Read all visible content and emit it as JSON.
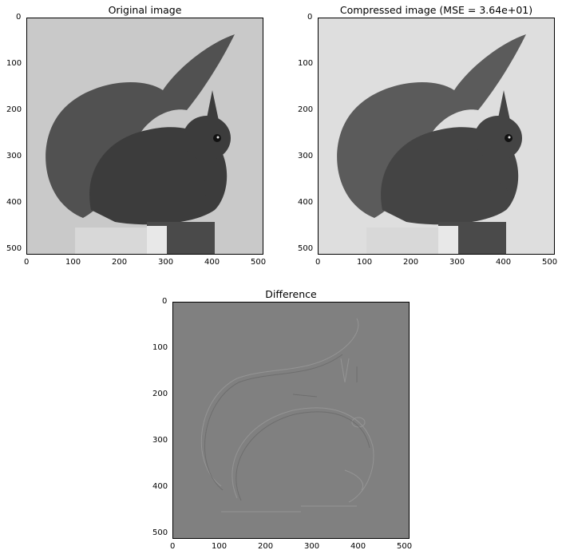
{
  "panels": [
    {
      "id": "original",
      "title": "Original image",
      "x_ticks": [
        "0",
        "100",
        "200",
        "300",
        "400",
        "500"
      ],
      "y_ticks": [
        "0",
        "100",
        "200",
        "300",
        "400",
        "500"
      ],
      "image": "squirrel-photo"
    },
    {
      "id": "compressed",
      "title": "Compressed image (MSE = 3.64e+01)",
      "x_ticks": [
        "0",
        "100",
        "200",
        "300",
        "400",
        "500"
      ],
      "y_ticks": [
        "0",
        "100",
        "200",
        "300",
        "400",
        "500"
      ],
      "image": "squirrel-photo-compressed"
    },
    {
      "id": "difference",
      "title": "Difference",
      "x_ticks": [
        "0",
        "100",
        "200",
        "300",
        "400",
        "500"
      ],
      "y_ticks": [
        "0",
        "100",
        "200",
        "300",
        "400",
        "500"
      ],
      "image": "difference-map"
    }
  ],
  "colors": {
    "original_bg": "#c9c9c9",
    "compressed_bg": "#dedede",
    "difference_bg": "#808080",
    "fur": "#3c3c3c"
  }
}
